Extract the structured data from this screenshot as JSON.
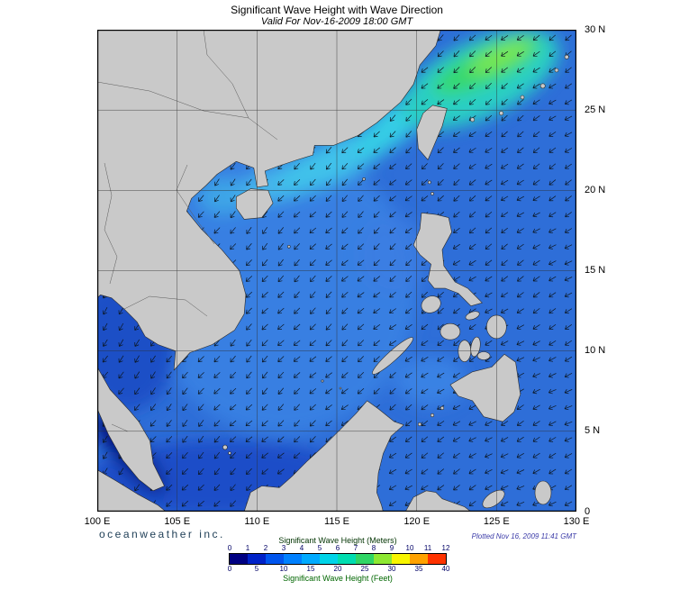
{
  "header": {
    "title": "Significant Wave Height with Wave Direction",
    "subtitle": "Valid For Nov-16-2009 18:00 GMT"
  },
  "footer": {
    "branding": "oceanweather inc.",
    "plotted": "Plotted Nov 16, 2009 11:41 GMT"
  },
  "axes": {
    "lat_labels": [
      "30 N",
      "25 N",
      "20 N",
      "15 N",
      "10 N",
      "5 N",
      "0"
    ],
    "lon_labels": [
      "100 E",
      "105 E",
      "110 E",
      "115 E",
      "120 E",
      "125 E",
      "130 E"
    ]
  },
  "legend": {
    "meters_label": "Significant Wave Height (Meters)",
    "feet_label": "Significant Wave Height (Feet)",
    "meters_ticks": [
      "0",
      "1",
      "2",
      "3",
      "4",
      "5",
      "6",
      "7",
      "8",
      "9",
      "10",
      "11",
      "12"
    ],
    "feet_ticks": [
      "0",
      "5",
      "10",
      "15",
      "20",
      "25",
      "30",
      "35",
      "40"
    ],
    "colors": [
      "#000082",
      "#0022c8",
      "#0055ee",
      "#0080ff",
      "#00aaff",
      "#00d4e8",
      "#00ddb0",
      "#2fd565",
      "#8ee832",
      "#f8f500",
      "#ffa200",
      "#ff3300"
    ],
    "meters_label_color": "#003300",
    "feet_label_color": "#006600",
    "tick_color": "#000066"
  },
  "map": {
    "ocean_base": "#2e6ed8",
    "land_color": "#c9c9c9",
    "coast_color": "#2a2a2a",
    "grid_color": "#2f2f2f",
    "arrow_color": "#0c1722",
    "arrows": {
      "lon_start": 100.5,
      "lon_end": 129.6,
      "lat_start": 0.5,
      "lat_end": 29.6,
      "step": 1.0
    }
  }
}
